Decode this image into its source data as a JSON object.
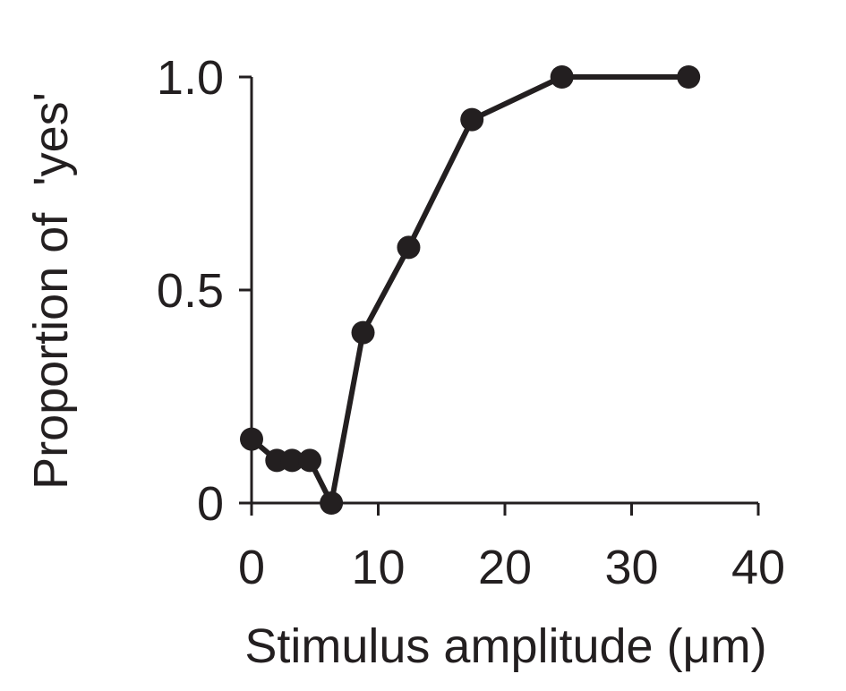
{
  "chart_data": {
    "type": "line",
    "xlabel": "Stimulus amplitude (μm)",
    "ylabel": "Proportion of  'yes'",
    "xlim": [
      0,
      40
    ],
    "ylim": [
      0,
      1
    ],
    "xticks": [
      0,
      10,
      20,
      30,
      40
    ],
    "xtick_labels": [
      "0",
      "10",
      "20",
      "30",
      "40"
    ],
    "yticks": [
      0,
      0.5,
      1
    ],
    "ytick_labels": [
      "0",
      "0.5",
      "1.0"
    ],
    "grid": false,
    "series": [
      {
        "x": [
          0,
          2,
          3.2,
          4.6,
          6.3,
          8.8,
          12.4,
          17.4,
          24.5,
          34.5
        ],
        "y": [
          0.15,
          0.1,
          0.1,
          0.1,
          0,
          0.4,
          0.6,
          0.9,
          1.0,
          1.0
        ],
        "color": "#231f20"
      }
    ]
  }
}
